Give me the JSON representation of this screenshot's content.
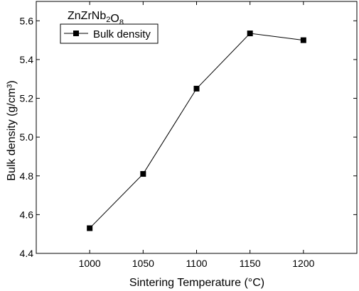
{
  "chart_data": {
    "type": "line",
    "title": "",
    "xlabel": "Sintering Temperature (°C)",
    "ylabel": "Bulk density (g/cm³)",
    "xlim": [
      950,
      1250
    ],
    "ylim": [
      4.4,
      5.7
    ],
    "x_ticks": [
      1000,
      1050,
      1100,
      1150,
      1200
    ],
    "y_ticks": [
      4.4,
      4.6,
      4.8,
      5.0,
      5.2,
      5.4,
      5.6
    ],
    "x_tick_labels": [
      "1000",
      "1050",
      "1100",
      "1150",
      "1200"
    ],
    "y_tick_labels": [
      "4.4",
      "4.6",
      "4.8",
      "5.0",
      "5.2",
      "5.4",
      "5.6"
    ],
    "grid": false,
    "legend_position": "top-left",
    "annotation": "ZnZrNb2O8",
    "series": [
      {
        "name": "Bulk density",
        "marker": "square",
        "color": "#000000",
        "x": [
          1000,
          1050,
          1100,
          1150,
          1200
        ],
        "y": [
          4.53,
          4.81,
          5.25,
          5.535,
          5.5
        ]
      }
    ]
  }
}
